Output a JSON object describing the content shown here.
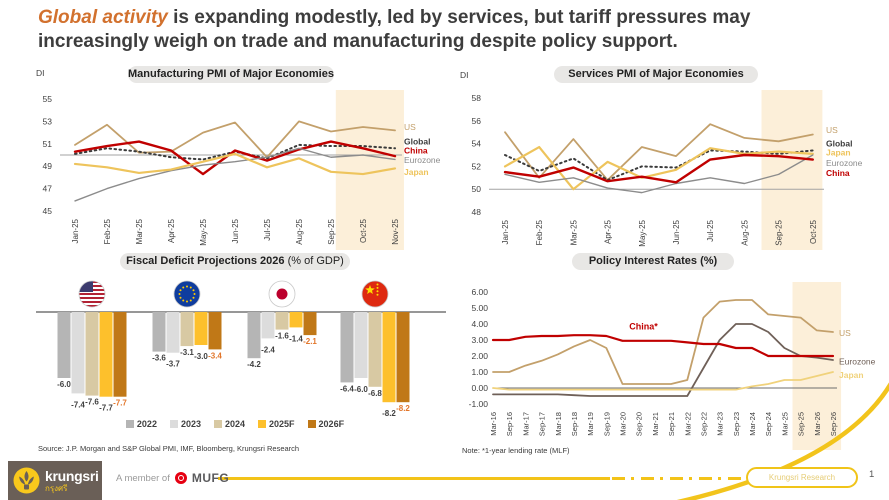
{
  "slide": {
    "title": {
      "highlight": "Global activity",
      "rest": " is expanding modestly, led by services, but tariff pressures may increasingly weigh on trade and manufacturing despite policy support."
    },
    "source": "Source: J.P. Morgan and S&P Global PMI, IMF, Bloomberg, Krungsri Research",
    "note": "Note: *1-year lending rate (MLF)",
    "page_number": "1",
    "footer": {
      "brand": "krungsri",
      "brand_thai": "กรุงศรี",
      "member_text": "A member of",
      "member_brand": "MUFG",
      "watermark": "Krungsri Research"
    }
  },
  "colors": {
    "title_accent": "#d2712e",
    "forecast_band": "#fcefd9",
    "brand_brown": "#6a5f57",
    "brand_yellow": "#f3c318",
    "mufg_red": "#e60012"
  },
  "chart_data": [
    {
      "type": "line",
      "name": "manufacturing-pmi",
      "title": "Manufacturing PMI of Major Economies",
      "ylabel": "DI",
      "ylim": [
        45,
        55
      ],
      "yticks": [
        55,
        53,
        51,
        49,
        47,
        45
      ],
      "refline": 50,
      "forecast_band": [
        8.15,
        10.28
      ],
      "x": [
        "Jan-25",
        "Feb-25",
        "Mar-25",
        "Apr-25",
        "May-25",
        "Jun-25",
        "Jul-25",
        "Aug-25",
        "Sep-25",
        "Oct-25",
        "Nov-25"
      ],
      "series": [
        {
          "name": "US",
          "color": "#c3a06b",
          "width": 1.8,
          "bold": false,
          "label_at": 52.5,
          "values": [
            50.9,
            52.7,
            50.2,
            50.3,
            52.0,
            52.9,
            49.8,
            53.0,
            52.1,
            52.5,
            52.2
          ]
        },
        {
          "name": "Global",
          "color": "#3b3b3b",
          "width": 2,
          "dash": true,
          "bold": true,
          "label_at": 51.2,
          "values": [
            50.1,
            50.6,
            50.3,
            49.8,
            49.6,
            50.3,
            49.7,
            50.9,
            50.8,
            50.8,
            50.6
          ]
        },
        {
          "name": "China",
          "color": "#c00000",
          "width": 2.4,
          "bold": true,
          "label_at": 50.4,
          "values": [
            50.3,
            50.8,
            51.2,
            50.4,
            48.3,
            50.4,
            49.5,
            50.5,
            51.2,
            50.6,
            49.9
          ]
        },
        {
          "name": "Eurozone",
          "color": "#8c8c8c",
          "width": 1.4,
          "bold": false,
          "label_at": 49.55,
          "values": [
            45.9,
            47.0,
            47.9,
            48.6,
            49.1,
            49.4,
            49.8,
            50.6,
            49.8,
            50.0,
            49.6
          ]
        },
        {
          "name": "Japan",
          "color": "#eec45c",
          "width": 2.2,
          "bold": true,
          "label_at": 48.5,
          "values": [
            49.2,
            48.9,
            48.4,
            48.7,
            49.4,
            50.1,
            48.9,
            49.7,
            48.5,
            48.3,
            48.8
          ]
        }
      ]
    },
    {
      "type": "line",
      "name": "services-pmi",
      "title": "Services PMI of Major Economies",
      "ylabel": "DI",
      "ylim": [
        48,
        58
      ],
      "yticks": [
        58,
        56,
        54,
        52,
        50,
        48
      ],
      "refline": 50,
      "forecast_band": [
        7.5,
        9.28
      ],
      "x": [
        "Jan-25",
        "Feb-25",
        "Mar-25",
        "Apr-25",
        "May-25",
        "Jun-25",
        "Jul-25",
        "Aug-25",
        "Sep-25",
        "Oct-25"
      ],
      "series": [
        {
          "name": "US",
          "color": "#c3a06b",
          "width": 1.8,
          "bold": false,
          "label_at": 55.2,
          "values": [
            55.0,
            51.0,
            54.4,
            50.8,
            53.7,
            52.9,
            55.7,
            54.5,
            54.2,
            54.8
          ]
        },
        {
          "name": "Global",
          "color": "#3b3b3b",
          "width": 2,
          "dash": true,
          "bold": true,
          "label_at": 54.0,
          "values": [
            53.0,
            51.6,
            52.7,
            50.8,
            52.0,
            51.9,
            53.4,
            53.3,
            53.1,
            53.4
          ]
        },
        {
          "name": "Japan",
          "color": "#eec45c",
          "width": 2.2,
          "bold": true,
          "label_at": 53.2,
          "values": [
            52.0,
            53.7,
            50.0,
            52.4,
            51.0,
            51.7,
            53.6,
            53.1,
            53.3,
            53.1
          ]
        },
        {
          "name": "Eurozone",
          "color": "#8c8c8c",
          "width": 1.4,
          "bold": false,
          "label_at": 52.3,
          "values": [
            51.3,
            50.6,
            51.0,
            50.1,
            49.7,
            50.5,
            51.0,
            50.5,
            51.3,
            53.0
          ]
        },
        {
          "name": "China",
          "color": "#c00000",
          "width": 2.4,
          "bold": true,
          "label_at": 51.4,
          "values": [
            51.5,
            51.1,
            51.9,
            50.7,
            51.1,
            50.6,
            52.6,
            53.0,
            52.9,
            52.6
          ]
        }
      ]
    },
    {
      "type": "bar",
      "name": "fiscal-deficit",
      "title_bold": "Fiscal Deficit Projections 2026",
      "title_rest": " (% of GDP)",
      "groups": [
        {
          "flag": "us",
          "values": [
            -6.0,
            -7.4,
            -7.6,
            -7.7,
            -7.7
          ]
        },
        {
          "flag": "eu",
          "values": [
            -3.6,
            -3.7,
            -3.1,
            -3.0,
            -3.4
          ]
        },
        {
          "flag": "japan",
          "values": [
            -4.2,
            -2.4,
            -1.6,
            -1.4,
            -2.1
          ]
        },
        {
          "flag": "china",
          "values": [
            -6.4,
            -6.0,
            -6.8,
            -8.2,
            -8.2
          ]
        }
      ],
      "legend": [
        {
          "label": "2022",
          "color": "#b5b5b5"
        },
        {
          "label": "2023",
          "color": "#dcdcdc"
        },
        {
          "label": "2024",
          "color": "#d8c9a3"
        },
        {
          "label": "2025F",
          "color": "#fdc02c"
        },
        {
          "label": "2026F",
          "color": "#c07817"
        }
      ],
      "last_label_color": "#e2762b"
    },
    {
      "type": "line",
      "name": "policy-rates",
      "title": "Policy Interest Rates (%)",
      "ylabel": "",
      "ylim": [
        -1,
        6
      ],
      "yticks": [
        6,
        5,
        4,
        3,
        2,
        1,
        0,
        -1
      ],
      "refline": 0,
      "forecast_band": [
        18.5,
        21.5
      ],
      "x": [
        "Mar-16",
        "Sep-16",
        "Mar-17",
        "Sep-17",
        "Mar-18",
        "Sep-18",
        "Mar-19",
        "Sep-19",
        "Mar-20",
        "Sep-20",
        "Mar-21",
        "Sep-21",
        "Mar-22",
        "Sep-22",
        "Mar-23",
        "Sep-23",
        "Mar-24",
        "Sep-24",
        "Mar-25",
        "Sep-25",
        "Mar-26",
        "Sep-26"
      ],
      "annotation": {
        "text": "China*",
        "color": "#c00000",
        "x_index": 9.3,
        "y_value": 3.42
      },
      "series": [
        {
          "name": "US",
          "color": "#c3a06b",
          "width": 1.8,
          "bold": false,
          "label_at": 3.45,
          "values": [
            1.0,
            1.0,
            1.4,
            1.7,
            2.1,
            2.6,
            3.0,
            2.5,
            0.25,
            0.25,
            0.25,
            0.25,
            0.5,
            4.4,
            5.4,
            5.5,
            5.5,
            4.6,
            4.5,
            4.4,
            3.6,
            3.5
          ]
        },
        {
          "name": "Eurozone",
          "color": "#6f6058",
          "width": 1.8,
          "bold": false,
          "label_at": 1.65,
          "values": [
            -0.4,
            -0.4,
            -0.4,
            -0.4,
            -0.4,
            -0.45,
            -0.5,
            -0.5,
            -0.5,
            -0.5,
            -0.5,
            -0.5,
            -0.5,
            1.25,
            3.0,
            4.0,
            4.0,
            3.5,
            2.5,
            2.0,
            1.9,
            1.75
          ]
        },
        {
          "name": "Japan",
          "color": "#f0d27c",
          "width": 1.8,
          "bold": true,
          "label_at": 0.8,
          "values": [
            0.0,
            -0.1,
            -0.1,
            -0.1,
            -0.1,
            -0.1,
            -0.1,
            -0.1,
            -0.1,
            -0.1,
            -0.1,
            -0.1,
            -0.1,
            -0.1,
            -0.1,
            -0.1,
            0.1,
            0.25,
            0.5,
            0.5,
            0.75,
            1.0
          ]
        },
        {
          "name": "China",
          "color": "#c00000",
          "width": 2.2,
          "bold": true,
          "label_at": null,
          "values": [
            3.0,
            3.0,
            3.2,
            3.25,
            3.25,
            3.3,
            3.3,
            3.25,
            2.95,
            2.95,
            2.95,
            2.95,
            2.85,
            2.75,
            2.75,
            2.5,
            2.5,
            2.0,
            2.0,
            2.0,
            2.0,
            2.0
          ]
        }
      ]
    }
  ]
}
